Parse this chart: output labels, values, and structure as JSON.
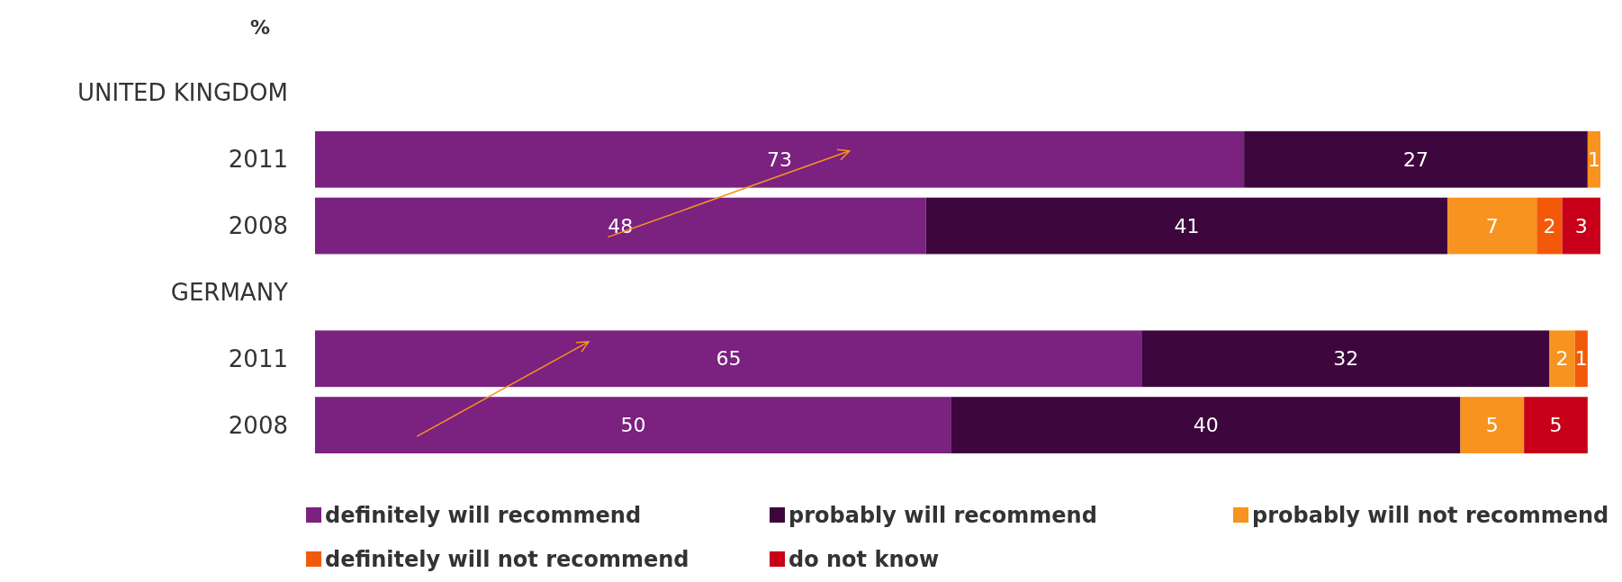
{
  "chart_data": {
    "type": "bar",
    "orientation": "horizontal",
    "stacked": true,
    "xlabel": "%",
    "categories": [
      "UNITED KINGDOM",
      "2011",
      "2008",
      "GERMANY",
      "2011",
      "2008"
    ],
    "series": [
      {
        "name": "definitely will recommend",
        "color": "#7b2180",
        "values": [
          null,
          73,
          48,
          null,
          65,
          50
        ]
      },
      {
        "name": "probably will recommend",
        "color": "#3d063d",
        "values": [
          null,
          27,
          41,
          null,
          32,
          40
        ]
      },
      {
        "name": "probably will not recommend",
        "color": "#f7931e",
        "values": [
          null,
          1,
          7,
          null,
          2,
          5
        ]
      },
      {
        "name": "definitely will not recommend",
        "color": "#f25a0a",
        "values": [
          null,
          null,
          2,
          null,
          1,
          null
        ]
      },
      {
        "name": "do not know",
        "color": "#c8001a",
        "values": [
          null,
          null,
          3,
          null,
          null,
          5
        ]
      }
    ],
    "data_labels": true,
    "legend": "bottom",
    "tick_labels": "y"
  }
}
